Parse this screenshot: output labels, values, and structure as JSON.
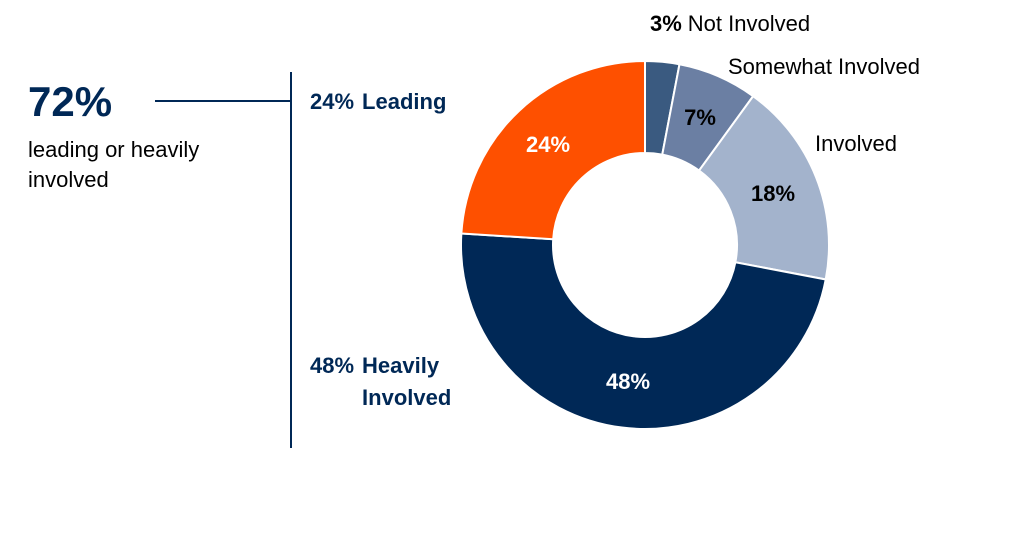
{
  "chart_data": {
    "type": "donut",
    "categories": [
      "Not Involved",
      "Somewhat Involved",
      "Involved",
      "Heavily Involved",
      "Leading"
    ],
    "values": [
      3,
      7,
      18,
      48,
      24
    ],
    "value_labels": [
      "3%",
      "7%",
      "18%",
      "48%",
      "24%"
    ],
    "colors": [
      "#3a5a80",
      "#6b7fa3",
      "#a3b3cc",
      "#002856",
      "#fe5000"
    ],
    "summary": {
      "label": "72%",
      "text": "leading or heavily involved"
    }
  }
}
